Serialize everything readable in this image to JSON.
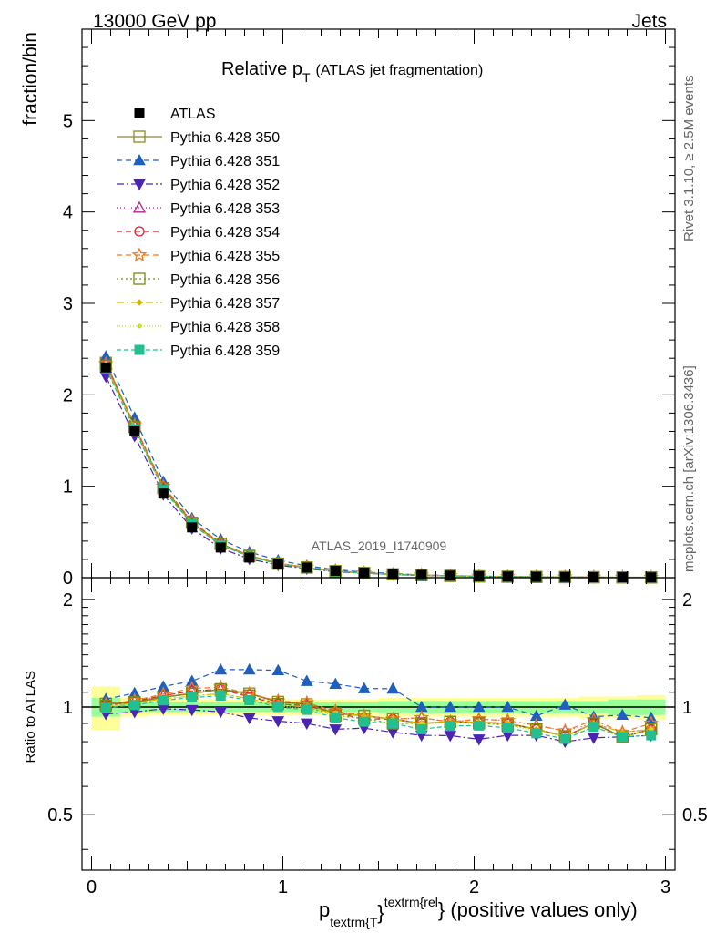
{
  "header": {
    "left": "13000 GeV pp",
    "right": "Jets"
  },
  "title": {
    "main": "Relative p",
    "sub": "T",
    "rest": "(ATLAS jet fragmentation)"
  },
  "side_labels": {
    "rivet": "Rivet 3.1.10, ≥ 2.5M events",
    "mcplots": "mcplots.cern.ch [arXiv:1306.3436]"
  },
  "watermark": "ATLAS_2019_I1740909",
  "axes": {
    "top_ylabel": "fraction/bin",
    "bottom_ylabel": "Ratio to ATLAS",
    "xlabel": {
      "p": "p",
      "sub": "textrm{T",
      "sup": "textrm{rel",
      "brace": "}",
      "rest": "} (positive values only)"
    },
    "top_yticks": [
      "0",
      "1",
      "2",
      "3",
      "4",
      "5"
    ],
    "bottom_yticks": [
      "0.5",
      "1",
      "2"
    ],
    "xticks": [
      "0",
      "1",
      "2",
      "3"
    ]
  },
  "chart_data": {
    "type": "line",
    "x": [
      0.075,
      0.225,
      0.375,
      0.525,
      0.675,
      0.825,
      0.975,
      1.125,
      1.275,
      1.425,
      1.575,
      1.725,
      1.875,
      2.025,
      2.175,
      2.325,
      2.475,
      2.625,
      2.775,
      2.925
    ],
    "xlim": [
      -0.05,
      3.05
    ],
    "top_ylim": [
      0,
      6
    ],
    "ratio_ylim": [
      0.35,
      2.3
    ],
    "ratio_scale": "log",
    "grid": false,
    "legend_position": "top-left",
    "data": {
      "name": "ATLAS",
      "values": [
        2.3,
        1.6,
        0.92,
        0.55,
        0.33,
        0.22,
        0.15,
        0.11,
        0.075,
        0.055,
        0.04,
        0.03,
        0.022,
        0.016,
        0.012,
        0.009,
        0.007,
        0.005,
        0.004,
        0.003
      ]
    },
    "band_green": [
      0.06,
      0.03,
      0.03,
      0.03,
      0.03,
      0.03,
      0.03,
      0.03,
      0.03,
      0.03,
      0.04,
      0.04,
      0.04,
      0.04,
      0.04,
      0.04,
      0.04,
      0.04,
      0.05,
      0.05
    ],
    "band_yellow": [
      0.14,
      0.06,
      0.05,
      0.05,
      0.05,
      0.05,
      0.05,
      0.05,
      0.05,
      0.05,
      0.06,
      0.06,
      0.06,
      0.06,
      0.06,
      0.06,
      0.06,
      0.07,
      0.07,
      0.08
    ],
    "series": [
      {
        "name": "Pythia 6.428 350",
        "color": "#8b8b1a",
        "marker": "square-open",
        "dash": "",
        "values": [
          2.35,
          1.65,
          0.98,
          0.6,
          0.37,
          0.24,
          0.155,
          0.112,
          0.072,
          0.052,
          0.037,
          0.027,
          0.02,
          0.0145,
          0.0108,
          0.0078,
          0.0058,
          0.0045,
          0.0033,
          0.0026
        ]
      },
      {
        "name": "Pythia 6.428 351",
        "color": "#1f5fbf",
        "marker": "triangle-up",
        "dash": "6,4",
        "values": [
          2.42,
          1.75,
          1.05,
          0.65,
          0.42,
          0.28,
          0.19,
          0.13,
          0.087,
          0.062,
          0.045,
          0.03,
          0.022,
          0.016,
          0.012,
          0.0085,
          0.0071,
          0.0047,
          0.0038,
          0.0028
        ]
      },
      {
        "name": "Pythia 6.428 352",
        "color": "#4a24b4",
        "marker": "triangle-down",
        "dash": "8,3,2,3",
        "values": [
          2.2,
          1.55,
          0.91,
          0.54,
          0.32,
          0.205,
          0.137,
          0.099,
          0.065,
          0.048,
          0.034,
          0.025,
          0.0183,
          0.013,
          0.01,
          0.0075,
          0.0056,
          0.0041,
          0.0033,
          0.0025
        ]
      },
      {
        "name": "Pythia 6.428 353",
        "color": "#b4238c",
        "marker": "triangle-open",
        "dash": "1,3",
        "values": [
          2.34,
          1.66,
          0.99,
          0.61,
          0.37,
          0.24,
          0.155,
          0.112,
          0.073,
          0.052,
          0.037,
          0.028,
          0.02,
          0.0148,
          0.011,
          0.008,
          0.006,
          0.0045,
          0.0034,
          0.0026
        ]
      },
      {
        "name": "Pythia 6.428 354",
        "color": "#e0202a",
        "marker": "circle-open",
        "dash": "6,4",
        "values": [
          2.33,
          1.66,
          0.99,
          0.61,
          0.37,
          0.235,
          0.153,
          0.111,
          0.072,
          0.051,
          0.037,
          0.027,
          0.02,
          0.0145,
          0.0108,
          0.0078,
          0.0058,
          0.0045,
          0.0033,
          0.0026
        ]
      },
      {
        "name": "Pythia 6.428 355",
        "color": "#f07818",
        "marker": "star",
        "dash": "6,4",
        "values": [
          2.34,
          1.67,
          1.0,
          0.62,
          0.375,
          0.24,
          0.156,
          0.113,
          0.073,
          0.052,
          0.037,
          0.028,
          0.02,
          0.0148,
          0.011,
          0.008,
          0.006,
          0.0046,
          0.0034,
          0.0027
        ]
      },
      {
        "name": "Pythia 6.428 356",
        "color": "#7a8a12",
        "marker": "square-open",
        "dash": "2,3",
        "values": [
          2.32,
          1.65,
          0.98,
          0.6,
          0.37,
          0.237,
          0.153,
          0.11,
          0.071,
          0.051,
          0.036,
          0.027,
          0.02,
          0.0144,
          0.0107,
          0.0078,
          0.0058,
          0.0045,
          0.0033,
          0.0026
        ]
      },
      {
        "name": "Pythia 6.428 357",
        "color": "#d4b800",
        "marker": "diamond-small",
        "dash": "8,3,2,3",
        "values": [
          2.31,
          1.64,
          0.97,
          0.59,
          0.36,
          0.232,
          0.152,
          0.11,
          0.072,
          0.052,
          0.037,
          0.027,
          0.02,
          0.0145,
          0.0108,
          0.0078,
          0.0058,
          0.0045,
          0.0034,
          0.0026
        ]
      },
      {
        "name": "Pythia 6.428 358",
        "color": "#c8dc2c",
        "marker": "dot",
        "dash": "1,2",
        "values": [
          2.3,
          1.63,
          0.97,
          0.59,
          0.36,
          0.232,
          0.151,
          0.109,
          0.071,
          0.051,
          0.036,
          0.027,
          0.0198,
          0.0144,
          0.0107,
          0.0077,
          0.0058,
          0.0044,
          0.0033,
          0.0026
        ]
      },
      {
        "name": "Pythia 6.428 359",
        "color": "#20c090",
        "marker": "square-filled",
        "dash": "5,3",
        "values": [
          2.29,
          1.62,
          0.96,
          0.585,
          0.355,
          0.23,
          0.15,
          0.108,
          0.07,
          0.05,
          0.036,
          0.026,
          0.0195,
          0.0142,
          0.0105,
          0.0076,
          0.0057,
          0.0044,
          0.0033,
          0.0025
        ]
      }
    ]
  }
}
